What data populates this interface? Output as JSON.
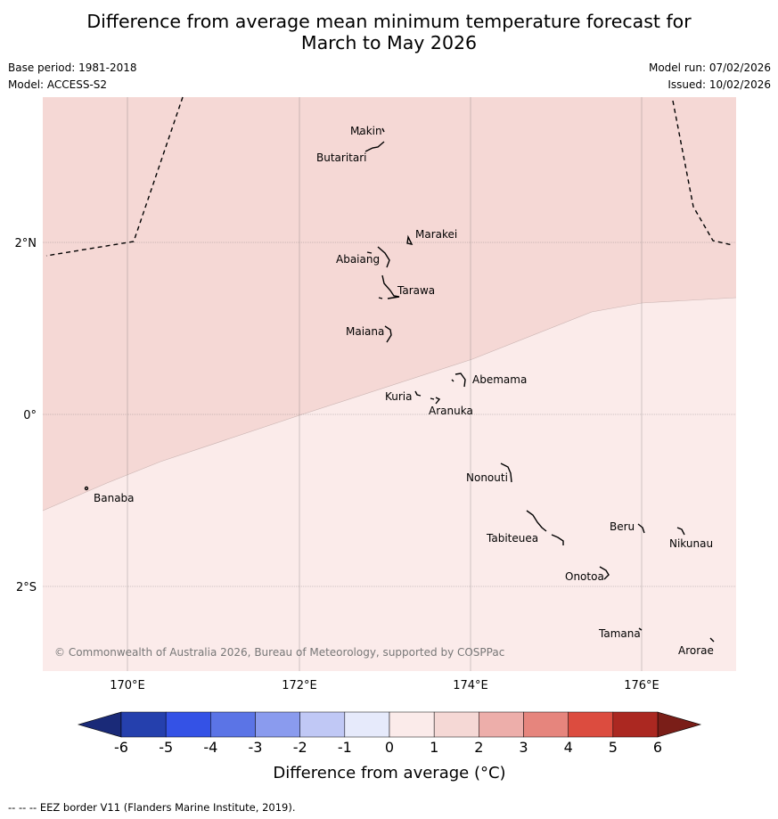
{
  "title": {
    "line1": "Difference from average mean minimum temperature forecast for",
    "line2": "March to May 2026"
  },
  "meta": {
    "base_period": "Base period: 1981-2018",
    "model": "Model: ACCESS-S2",
    "model_run": "Model run: 07/02/2026",
    "issued": "Issued: 10/02/2026"
  },
  "map": {
    "lon_range": [
      169,
      177.1
    ],
    "lat_range": [
      -2.98,
      3.7
    ],
    "lon_ticks": [
      170,
      172,
      174,
      176
    ],
    "lon_tick_labels": [
      "170°E",
      "172°E",
      "174°E",
      "176°E"
    ],
    "lat_ticks": [
      2,
      0,
      -2
    ],
    "lat_tick_labels": [
      "2°N",
      "0°",
      "2°S"
    ],
    "copyright": "© Commonwealth of Australia 2026, Bureau of Meteorology, supported by COSPPac",
    "islands": [
      {
        "name": "Makin"
      },
      {
        "name": "Butaritari"
      },
      {
        "name": "Marakei"
      },
      {
        "name": "Abaiang"
      },
      {
        "name": "Tarawa"
      },
      {
        "name": "Maiana"
      },
      {
        "name": "Abemama"
      },
      {
        "name": "Kuria"
      },
      {
        "name": "Aranuka"
      },
      {
        "name": "Nonouti"
      },
      {
        "name": "Banaba"
      },
      {
        "name": "Beru"
      },
      {
        "name": "Tabiteuea"
      },
      {
        "name": "Nikunau"
      },
      {
        "name": "Onotoa"
      },
      {
        "name": "Tamana"
      },
      {
        "name": "Arorae"
      }
    ],
    "anomaly_regions": [
      {
        "category": "1 to 2",
        "color": "#f5d8d5"
      },
      {
        "category": "0 to 1",
        "color": "#fbebea"
      }
    ]
  },
  "colorbar": {
    "tick_labels": [
      "-6",
      "-5",
      "-4",
      "-3",
      "-2",
      "-1",
      "0",
      "1",
      "2",
      "3",
      "4",
      "5",
      "6"
    ],
    "colors": [
      "#2540ad",
      "#3452e6",
      "#5b74e6",
      "#8a9bee",
      "#c0c8f5",
      "#e6eafb",
      "#fbebea",
      "#f5d8d5",
      "#edaeaa",
      "#e6857d",
      "#dc4c3f",
      "#ab2821"
    ],
    "under_color": "#1a2a78",
    "over_color": "#7a1e18",
    "label": "Difference from average (°C)"
  },
  "footer": "--  --  -- EEZ border V11 (Flanders Marine Institute, 2019)."
}
